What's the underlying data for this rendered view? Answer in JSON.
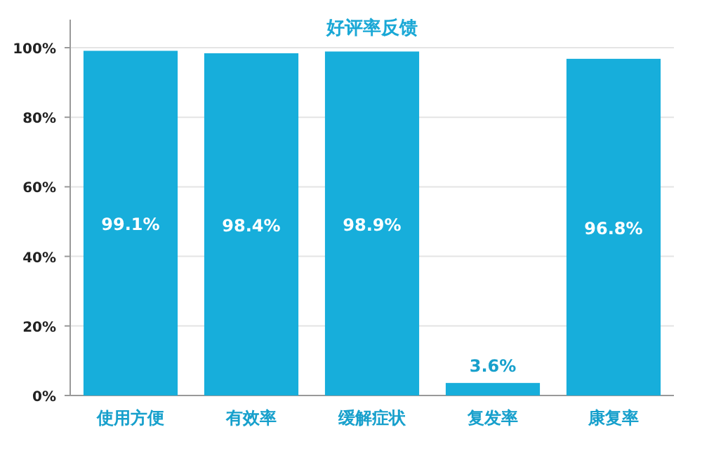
{
  "chart_data": {
    "type": "bar",
    "title": "好评率反馈",
    "categories": [
      "使用方便",
      "有效率",
      "缓解症状",
      "复发率",
      "康复率"
    ],
    "values": [
      99.1,
      98.4,
      98.9,
      3.6,
      96.8
    ],
    "color": "#17aedb",
    "ylim": [
      0,
      100
    ],
    "yticks": [
      {
        "value": 0,
        "label": "0%"
      },
      {
        "value": 20,
        "label": "20%"
      },
      {
        "value": 40,
        "label": "40%"
      },
      {
        "value": 60,
        "label": "60%"
      },
      {
        "value": 80,
        "label": "80%"
      },
      {
        "value": 100,
        "label": "100%"
      }
    ],
    "value_labels": [
      "99.1%",
      "98.4%",
      "98.9%",
      "3.6%",
      "96.8%"
    ],
    "grid": "y"
  }
}
